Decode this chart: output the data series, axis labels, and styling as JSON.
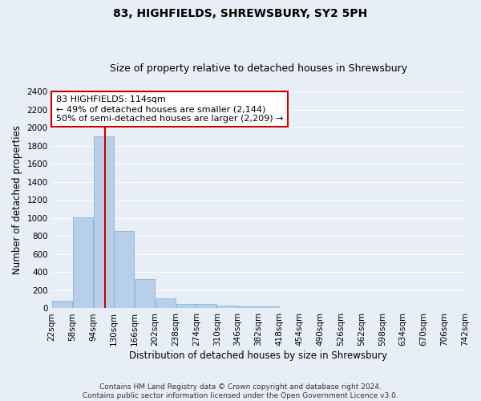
{
  "title": "83, HIGHFIELDS, SHREWSBURY, SY2 5PH",
  "subtitle": "Size of property relative to detached houses in Shrewsbury",
  "xlabel": "Distribution of detached houses by size in Shrewsbury",
  "ylabel": "Number of detached properties",
  "bar_color": "#b8cfe8",
  "bar_edge_color": "#7aadd4",
  "vline_x": 114,
  "vline_color": "#cc0000",
  "annotation_text": "83 HIGHFIELDS: 114sqm\n← 49% of detached houses are smaller (2,144)\n50% of semi-detached houses are larger (2,209) →",
  "annotation_box_color": "#ffffff",
  "annotation_box_edge": "#cc0000",
  "bin_edges": [
    22,
    58,
    94,
    130,
    166,
    202,
    238,
    274,
    310,
    346,
    382,
    418,
    454,
    490,
    526,
    562,
    598,
    634,
    670,
    706,
    742
  ],
  "bar_heights": [
    80,
    1010,
    1900,
    860,
    320,
    110,
    50,
    50,
    35,
    25,
    20,
    0,
    0,
    0,
    0,
    0,
    0,
    0,
    0,
    0
  ],
  "ylim": [
    0,
    2400
  ],
  "yticks": [
    0,
    200,
    400,
    600,
    800,
    1000,
    1200,
    1400,
    1600,
    1800,
    2000,
    2200,
    2400
  ],
  "footer_line1": "Contains HM Land Registry data © Crown copyright and database right 2024.",
  "footer_line2": "Contains public sector information licensed under the Open Government Licence v3.0.",
  "background_color": "#e8eef5",
  "grid_color": "#ffffff",
  "title_fontsize": 10,
  "subtitle_fontsize": 9,
  "label_fontsize": 8.5,
  "tick_fontsize": 7.5,
  "annotation_fontsize": 8,
  "footer_fontsize": 6.5
}
